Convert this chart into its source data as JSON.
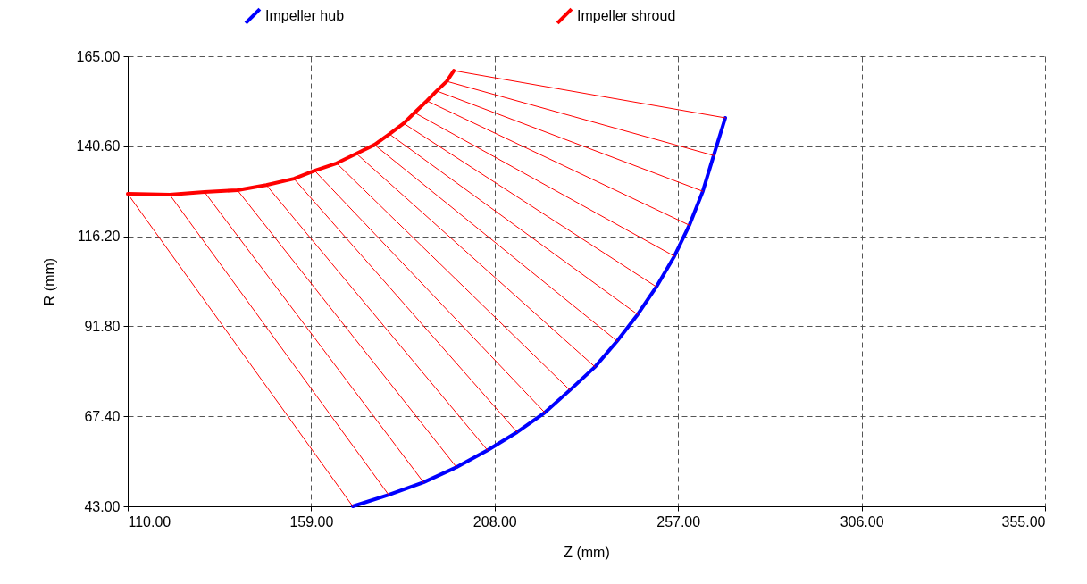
{
  "chart_data": {
    "type": "line",
    "xlabel": "Z (mm)",
    "ylabel": "R (mm)",
    "xlim": [
      110,
      355
    ],
    "ylim": [
      43,
      165
    ],
    "xticks": [
      {
        "value": 110,
        "label": "110.00"
      },
      {
        "value": 159,
        "label": "159.00"
      },
      {
        "value": 208,
        "label": "208.00"
      },
      {
        "value": 257,
        "label": "257.00"
      },
      {
        "value": 306,
        "label": "306.00"
      },
      {
        "value": 355,
        "label": "355.00"
      }
    ],
    "yticks": [
      {
        "value": 43,
        "label": "43.00"
      },
      {
        "value": 67.4,
        "label": "67.40"
      },
      {
        "value": 91.8,
        "label": "91.80"
      },
      {
        "value": 116.2,
        "label": "116.20"
      },
      {
        "value": 140.6,
        "label": "140.60"
      },
      {
        "value": 165,
        "label": "165.00"
      }
    ],
    "grid": true,
    "legend": "top",
    "line_style": "solid",
    "series": [
      {
        "name": "Impeller hub",
        "color": "#0000ff",
        "x": [
          170.1,
          179.7,
          189.0,
          197.8,
          206.1,
          214.0,
          221.4,
          228.1,
          234.8,
          240.7,
          246.2,
          251.2,
          256.0,
          260.0,
          263.6,
          266.5,
          269.6
        ],
        "values": [
          43.0,
          46.1,
          49.5,
          53.6,
          58.2,
          63.1,
          68.4,
          74.5,
          80.8,
          87.8,
          95.0,
          102.5,
          110.8,
          119.2,
          128.4,
          138.1,
          148.3
        ]
      },
      {
        "name": "Impeller shroud",
        "color": "#ff0000",
        "x": [
          110.0,
          121.2,
          130.5,
          139.3,
          147.0,
          154.4,
          159.9,
          165.8,
          171.1,
          175.9,
          179.9,
          183.7,
          186.6,
          189.9,
          192.5,
          195.2,
          197.1
        ],
        "values": [
          127.7,
          127.5,
          128.2,
          128.7,
          130.1,
          131.8,
          134.0,
          136.0,
          138.6,
          141.0,
          143.9,
          146.8,
          149.7,
          152.9,
          155.6,
          158.2,
          161.1
        ]
      },
      {
        "color": "#ff0000",
        "x": [
          110.0,
          170.1
        ],
        "values": [
          127.7,
          43.0
        ]
      },
      {
        "color": "#ff0000",
        "x": [
          121.2,
          179.7
        ],
        "values": [
          127.5,
          46.1
        ]
      },
      {
        "color": "#ff0000",
        "x": [
          130.5,
          189.0
        ],
        "values": [
          128.2,
          49.5
        ]
      },
      {
        "color": "#ff0000",
        "x": [
          139.3,
          197.8
        ],
        "values": [
          128.7,
          53.6
        ]
      },
      {
        "color": "#ff0000",
        "x": [
          147.0,
          206.1
        ],
        "values": [
          130.1,
          58.2
        ]
      },
      {
        "color": "#ff0000",
        "x": [
          154.4,
          214.0
        ],
        "values": [
          131.8,
          63.1
        ]
      },
      {
        "color": "#ff0000",
        "x": [
          159.9,
          221.4
        ],
        "values": [
          134.0,
          68.4
        ]
      },
      {
        "color": "#ff0000",
        "x": [
          165.8,
          228.1
        ],
        "values": [
          136.0,
          74.5
        ]
      },
      {
        "color": "#ff0000",
        "x": [
          171.1,
          234.8
        ],
        "values": [
          138.6,
          80.8
        ]
      },
      {
        "color": "#ff0000",
        "x": [
          175.9,
          240.7
        ],
        "values": [
          141.0,
          87.8
        ]
      },
      {
        "color": "#ff0000",
        "x": [
          179.9,
          246.2
        ],
        "values": [
          143.9,
          95.0
        ]
      },
      {
        "color": "#ff0000",
        "x": [
          183.7,
          251.2
        ],
        "values": [
          146.8,
          102.5
        ]
      },
      {
        "color": "#ff0000",
        "x": [
          186.6,
          256.0
        ],
        "values": [
          149.7,
          110.8
        ]
      },
      {
        "color": "#ff0000",
        "x": [
          189.9,
          260.0
        ],
        "values": [
          152.9,
          119.2
        ]
      },
      {
        "color": "#ff0000",
        "x": [
          192.5,
          263.6
        ],
        "values": [
          155.6,
          128.4
        ]
      },
      {
        "color": "#ff0000",
        "x": [
          195.2,
          266.5
        ],
        "values": [
          158.2,
          138.1
        ]
      },
      {
        "color": "#ff0000",
        "x": [
          197.1,
          269.6
        ],
        "values": [
          161.1,
          148.3
        ]
      }
    ]
  }
}
